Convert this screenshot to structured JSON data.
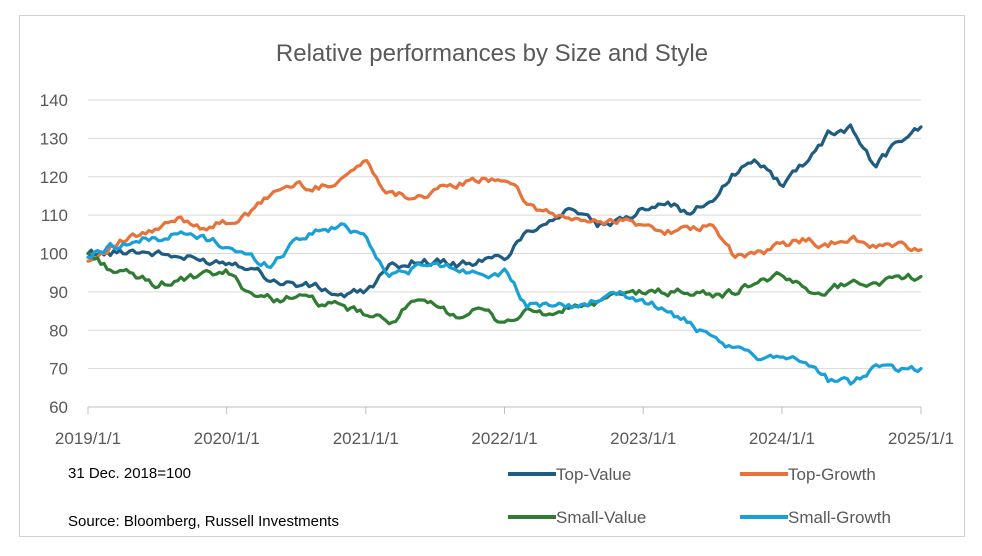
{
  "chart_data": {
    "type": "line",
    "title": "Relative performances by Size and Style",
    "xlabel": "",
    "ylabel": "",
    "x_ticks": [
      "2019/1/1",
      "2020/1/1",
      "2021/1/1",
      "2022/1/1",
      "2023/1/1",
      "2024/1/1",
      "2025/1/1"
    ],
    "y_ticks": [
      60,
      70,
      80,
      90,
      100,
      110,
      120,
      130,
      140
    ],
    "ylim": [
      60,
      140
    ],
    "xlim": [
      "2019/1/1",
      "2025/1/1"
    ],
    "grid": true,
    "legend_position": "bottom-right",
    "note": "31 Dec. 2018=100",
    "source": "Source: Bloomberg, Russell Investments",
    "x": [
      "2019-01-01",
      "2019-03-01",
      "2019-05-01",
      "2019-07-01",
      "2019-09-01",
      "2019-11-01",
      "2020-01-01",
      "2020-03-01",
      "2020-05-01",
      "2020-07-01",
      "2020-09-01",
      "2020-11-01",
      "2021-01-01",
      "2021-03-01",
      "2021-05-01",
      "2021-07-01",
      "2021-09-01",
      "2021-11-01",
      "2022-01-01",
      "2022-03-01",
      "2022-05-01",
      "2022-07-01",
      "2022-09-01",
      "2022-11-01",
      "2023-01-01",
      "2023-03-01",
      "2023-05-01",
      "2023-07-01",
      "2023-09-01",
      "2023-11-01",
      "2024-01-01",
      "2024-03-01",
      "2024-05-01",
      "2024-07-01",
      "2024-09-01",
      "2024-11-01",
      "2025-01-01"
    ],
    "series": [
      {
        "name": "Top-Value",
        "color": "#1f5c82",
        "values": [
          100,
          100,
          101,
          100,
          99,
          98,
          98,
          97,
          93,
          92,
          91,
          89,
          90,
          96,
          98,
          98,
          97,
          98,
          99,
          106,
          109,
          112,
          107,
          108,
          112,
          114,
          110,
          114,
          121,
          124,
          118,
          124,
          131,
          133,
          123,
          129,
          133
        ]
      },
      {
        "name": "Top-Growth",
        "color": "#e8733a",
        "values": [
          98,
          102,
          104,
          106,
          109,
          107,
          108,
          110,
          116,
          118,
          117,
          120,
          124,
          116,
          115,
          116,
          118,
          119,
          120,
          113,
          110,
          109,
          108,
          109,
          107,
          106,
          106,
          107,
          99,
          100,
          102,
          104,
          102,
          104,
          102,
          102,
          101
        ]
      },
      {
        "name": "Small-Value",
        "color": "#2e7d32",
        "values": [
          100,
          96,
          94,
          92,
          93,
          94,
          95,
          90,
          88,
          89,
          87,
          86,
          84,
          82,
          87,
          86,
          84,
          85,
          82,
          85,
          84,
          86,
          87,
          89,
          90,
          90,
          90,
          89,
          90,
          93,
          94,
          91,
          90,
          93,
          92,
          94,
          94
        ]
      },
      {
        "name": "Small-Growth",
        "color": "#1aa0d8",
        "values": [
          99,
          102,
          103,
          104,
          105,
          104,
          102,
          99,
          97,
          104,
          106,
          107,
          105,
          94,
          96,
          97,
          96,
          95,
          95,
          86,
          87,
          86,
          88,
          89,
          88,
          85,
          82,
          77,
          75,
          73,
          74,
          72,
          67,
          66,
          71,
          70,
          70
        ]
      }
    ]
  }
}
